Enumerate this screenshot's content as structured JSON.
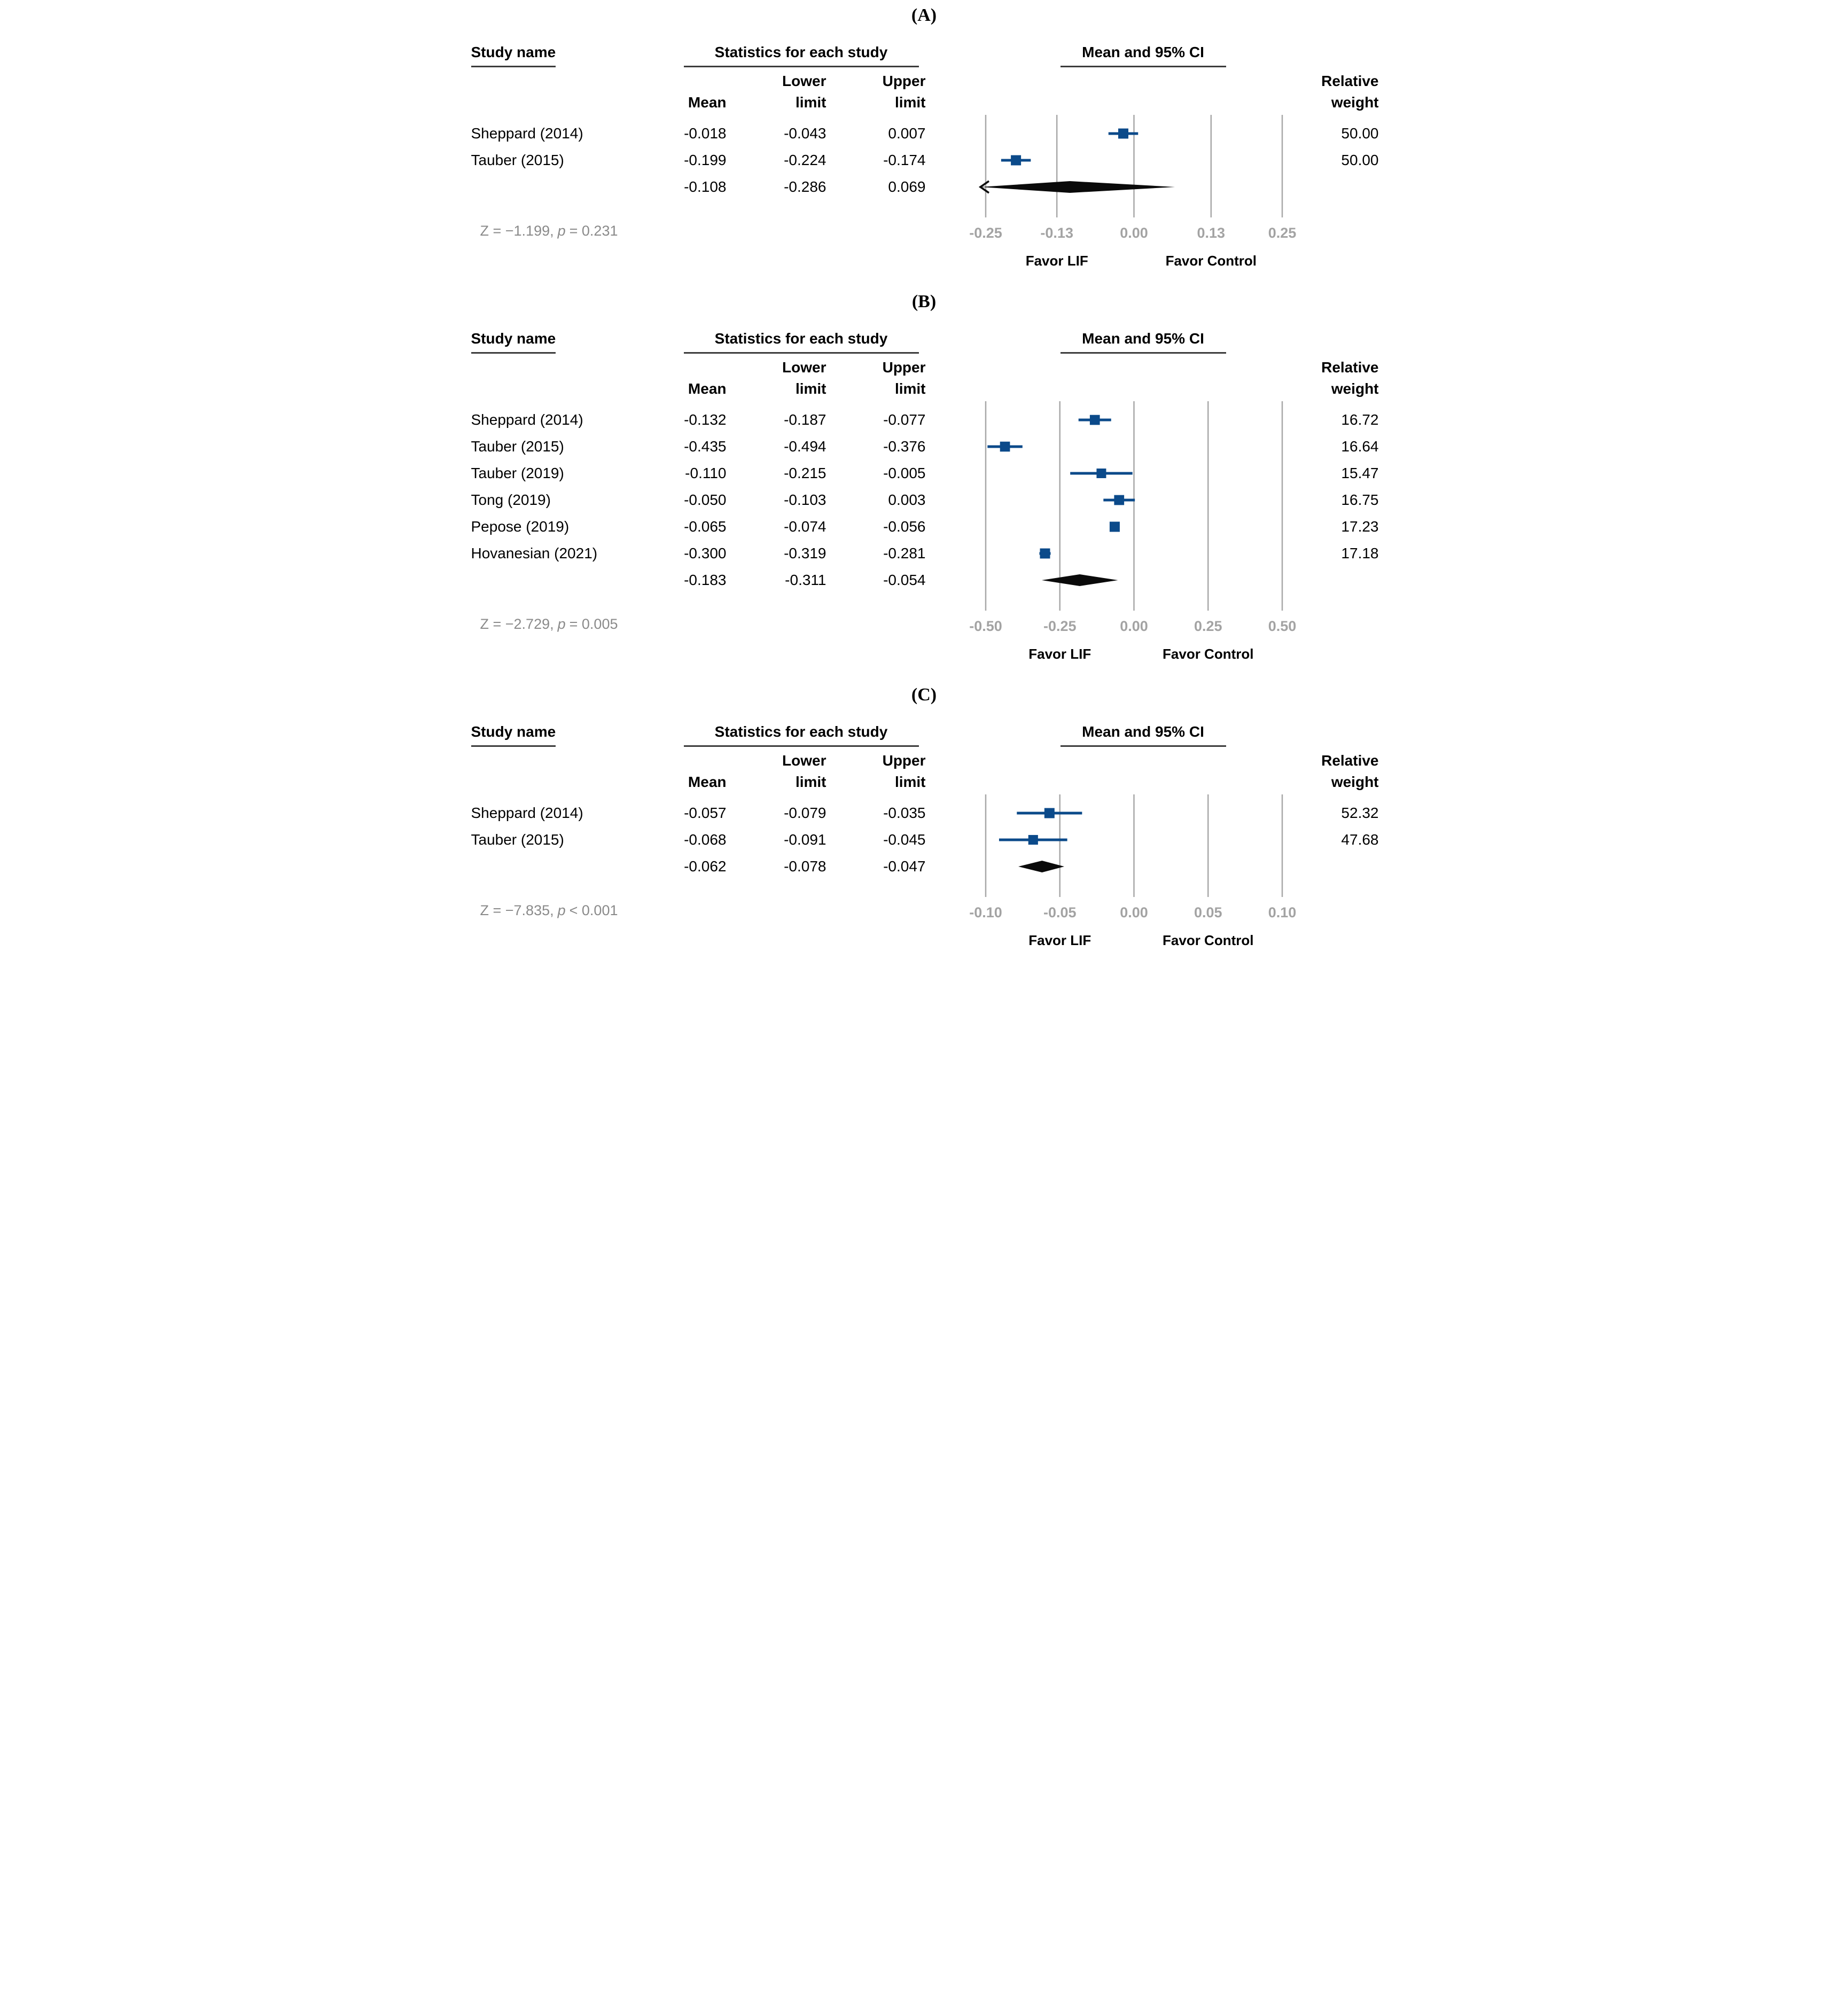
{
  "colors": {
    "marker_blue": "#0b4a8a",
    "diamond_black": "#0a0a0a",
    "gridline_gray": "#a8a8a8",
    "tick_gray": "#a3a3a3",
    "z_text_gray": "#8a8a8a",
    "underline_gray": "#3c3c3c"
  },
  "panels": [
    {
      "label": "(A)",
      "headers": {
        "study": "Study name",
        "stats": "Statistics for each study",
        "ci": "Mean and 95% CI",
        "weight_line1": "Relative",
        "weight_line2": "weight",
        "mean": "Mean",
        "lower_line1": "Lower",
        "lower_line2": "limit",
        "upper_line1": "Upper",
        "upper_line2": "limit"
      },
      "footer": {
        "z": "Z = −1.199,",
        "p_label": "p",
        "p_rest": "= 0.231"
      }
    },
    {
      "label": "(B)",
      "headers": {
        "study": "Study name",
        "stats": "Statistics for each study",
        "ci": "Mean and 95% CI",
        "weight_line1": "Relative",
        "weight_line2": "weight",
        "mean": "Mean",
        "lower_line1": "Lower",
        "lower_line2": "limit",
        "upper_line1": "Upper",
        "upper_line2": "limit"
      },
      "footer": {
        "z": "Z = −2.729,",
        "p_label": "p",
        "p_rest": "= 0.005"
      }
    },
    {
      "label": "(C)",
      "headers": {
        "study": "Study name",
        "stats": "Statistics for each study",
        "ci": "Mean and 95% CI",
        "weight_line1": "Relative",
        "weight_line2": "weight",
        "mean": "Mean",
        "lower_line1": "Lower",
        "lower_line2": "limit",
        "upper_line1": "Upper",
        "upper_line2": "limit"
      },
      "footer": {
        "z": "Z = −7.835,",
        "p_label": "p",
        "p_rest": "< 0.001"
      }
    }
  ],
  "chart_data": [
    {
      "type": "forest",
      "title": "Mean and 95% CI",
      "axis": {
        "xmin": -0.25,
        "xmax": 0.25,
        "ticks": [
          -0.25,
          -0.13,
          0.0,
          0.13,
          0.25
        ],
        "tick_labels": [
          "-0.25",
          "-0.13",
          "0.00",
          "0.13",
          "0.25"
        ],
        "favor_left": "Favor LIF",
        "favor_right": "Favor Control"
      },
      "studies": [
        {
          "name": "Sheppard (2014)",
          "mean": -0.018,
          "lower": -0.043,
          "upper": 0.007,
          "weight": 50.0,
          "mean_text": "-0.018",
          "lower_text": "-0.043",
          "upper_text": "0.007",
          "weight_text": "50.00"
        },
        {
          "name": "Tauber (2015)",
          "mean": -0.199,
          "lower": -0.224,
          "upper": -0.174,
          "weight": 50.0,
          "mean_text": "-0.199",
          "lower_text": "-0.224",
          "upper_text": "-0.174",
          "weight_text": "50.00"
        }
      ],
      "summary": {
        "mean": -0.108,
        "lower": -0.286,
        "upper": 0.069,
        "mean_text": "-0.108",
        "lower_text": "-0.286",
        "upper_text": "0.069",
        "arrow_left": true
      }
    },
    {
      "type": "forest",
      "title": "Mean and 95% CI",
      "axis": {
        "xmin": -0.5,
        "xmax": 0.5,
        "ticks": [
          -0.5,
          -0.25,
          0.0,
          0.25,
          0.5
        ],
        "tick_labels": [
          "-0.50",
          "-0.25",
          "0.00",
          "0.25",
          "0.50"
        ],
        "favor_left": "Favor LIF",
        "favor_right": "Favor Control"
      },
      "studies": [
        {
          "name": "Sheppard (2014)",
          "mean": -0.132,
          "lower": -0.187,
          "upper": -0.077,
          "weight": 16.72,
          "mean_text": "-0.132",
          "lower_text": "-0.187",
          "upper_text": "-0.077",
          "weight_text": "16.72"
        },
        {
          "name": "Tauber (2015)",
          "mean": -0.435,
          "lower": -0.494,
          "upper": -0.376,
          "weight": 16.64,
          "mean_text": "-0.435",
          "lower_text": "-0.494",
          "upper_text": "-0.376",
          "weight_text": "16.64"
        },
        {
          "name": "Tauber (2019)",
          "mean": -0.11,
          "lower": -0.215,
          "upper": -0.005,
          "weight": 15.47,
          "mean_text": "-0.110",
          "lower_text": "-0.215",
          "upper_text": "-0.005",
          "weight_text": "15.47"
        },
        {
          "name": "Tong (2019)",
          "mean": -0.05,
          "lower": -0.103,
          "upper": 0.003,
          "weight": 16.75,
          "mean_text": "-0.050",
          "lower_text": "-0.103",
          "upper_text": "0.003",
          "weight_text": "16.75"
        },
        {
          "name": "Pepose (2019)",
          "mean": -0.065,
          "lower": -0.074,
          "upper": -0.056,
          "weight": 17.23,
          "mean_text": "-0.065",
          "lower_text": "-0.074",
          "upper_text": "-0.056",
          "weight_text": "17.23"
        },
        {
          "name": "Hovanesian (2021)",
          "mean": -0.3,
          "lower": -0.319,
          "upper": -0.281,
          "weight": 17.18,
          "mean_text": "-0.300",
          "lower_text": "-0.319",
          "upper_text": "-0.281",
          "weight_text": "17.18"
        }
      ],
      "summary": {
        "mean": -0.183,
        "lower": -0.311,
        "upper": -0.054,
        "mean_text": "-0.183",
        "lower_text": "-0.311",
        "upper_text": "-0.054",
        "arrow_left": false
      }
    },
    {
      "type": "forest",
      "title": "Mean and 95% CI",
      "axis": {
        "xmin": -0.1,
        "xmax": 0.1,
        "ticks": [
          -0.1,
          -0.05,
          0.0,
          0.05,
          0.1
        ],
        "tick_labels": [
          "-0.10",
          "-0.05",
          "0.00",
          "0.05",
          "0.10"
        ],
        "favor_left": "Favor LIF",
        "favor_right": "Favor Control"
      },
      "studies": [
        {
          "name": "Sheppard (2014)",
          "mean": -0.057,
          "lower": -0.079,
          "upper": -0.035,
          "weight": 52.32,
          "mean_text": "-0.057",
          "lower_text": "-0.079",
          "upper_text": "-0.035",
          "weight_text": "52.32"
        },
        {
          "name": "Tauber (2015)",
          "mean": -0.068,
          "lower": -0.091,
          "upper": -0.045,
          "weight": 47.68,
          "mean_text": "-0.068",
          "lower_text": "-0.091",
          "upper_text": "-0.045",
          "weight_text": "47.68"
        }
      ],
      "summary": {
        "mean": -0.062,
        "lower": -0.078,
        "upper": -0.047,
        "mean_text": "-0.062",
        "lower_text": "-0.078",
        "upper_text": "-0.047",
        "arrow_left": false
      }
    }
  ]
}
